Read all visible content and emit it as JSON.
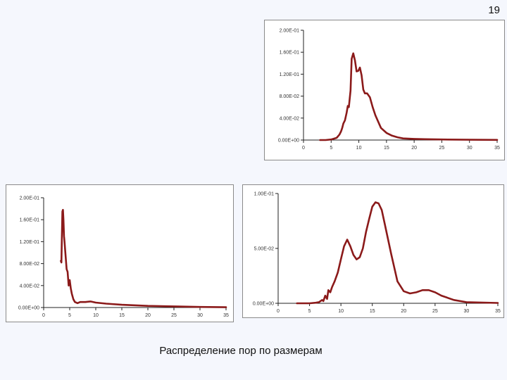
{
  "page_number": "19",
  "caption": "Распределение пор по размерам",
  "colors": {
    "series": "#8b1a1a",
    "axis": "#222222",
    "background": "#f5f7fd",
    "panel": "#ffffff"
  },
  "chart_data": [
    {
      "id": "top",
      "type": "line",
      "title": "",
      "xlabel": "",
      "ylabel": "",
      "xlim": [
        0,
        35
      ],
      "ylim": [
        0,
        0.2
      ],
      "xticks": [
        0,
        5,
        10,
        15,
        20,
        25,
        30,
        35
      ],
      "xtick_labels": [
        "0",
        "5",
        "10",
        "15",
        "20",
        "25",
        "30",
        "35"
      ],
      "yticks": [
        0,
        0.04,
        0.08,
        0.12,
        0.16,
        0.2
      ],
      "ytick_labels": [
        "0.00E+00",
        "4.00E-02",
        "8.00E-02",
        "1.20E-01",
        "1.60E-01",
        "2.00E-01"
      ],
      "grid": false,
      "series": [
        {
          "color": "#8b1a1a",
          "x": [
            3,
            4,
            5,
            6,
            6.5,
            6.8,
            7,
            7.2,
            7.5,
            7.8,
            8,
            8.2,
            8.5,
            8.7,
            9,
            9.3,
            9.6,
            9.9,
            10.2,
            10.5,
            10.8,
            11.1,
            11.5,
            12,
            12.5,
            13,
            14,
            15,
            16,
            17,
            18,
            20,
            22,
            25,
            28,
            30,
            35
          ],
          "y": [
            0,
            0,
            0.001,
            0.004,
            0.01,
            0.016,
            0.022,
            0.03,
            0.036,
            0.05,
            0.062,
            0.06,
            0.09,
            0.148,
            0.158,
            0.145,
            0.125,
            0.126,
            0.132,
            0.118,
            0.092,
            0.085,
            0.085,
            0.078,
            0.06,
            0.045,
            0.022,
            0.013,
            0.008,
            0.005,
            0.003,
            0.002,
            0.0015,
            0.001,
            0.0008,
            0.0005,
            0.0003
          ]
        }
      ]
    },
    {
      "id": "bottom-left",
      "type": "line",
      "title": "",
      "xlabel": "",
      "ylabel": "",
      "xlim": [
        0,
        35
      ],
      "ylim": [
        0,
        0.2
      ],
      "xticks": [
        0,
        5,
        10,
        15,
        20,
        25,
        30,
        35
      ],
      "xtick_labels": [
        "0",
        "5",
        "10",
        "15",
        "20",
        "25",
        "30",
        "35"
      ],
      "yticks": [
        0,
        0.04,
        0.08,
        0.12,
        0.16,
        0.2
      ],
      "ytick_labels": [
        "0.00E+00",
        "4.00E-02",
        "8.00E-02",
        "1.20E-01",
        "1.60E-01",
        "2.00E-01"
      ],
      "grid": false,
      "series": [
        {
          "color": "#8b1a1a",
          "x": [
            3.3,
            3.4,
            3.5,
            3.6,
            3.7,
            3.8,
            3.9,
            4.0,
            4.2,
            4.4,
            4.6,
            4.8,
            5,
            5.2,
            5.4,
            5.7,
            6,
            6.5,
            7,
            8,
            9,
            10,
            12,
            15,
            20,
            25,
            30,
            35
          ],
          "y": [
            0.085,
            0.082,
            0.13,
            0.175,
            0.178,
            0.16,
            0.13,
            0.12,
            0.095,
            0.07,
            0.065,
            0.04,
            0.05,
            0.035,
            0.025,
            0.015,
            0.01,
            0.008,
            0.01,
            0.01,
            0.011,
            0.009,
            0.007,
            0.005,
            0.003,
            0.002,
            0.001,
            0.0005
          ]
        }
      ]
    },
    {
      "id": "bottom-right",
      "type": "line",
      "title": "",
      "xlabel": "",
      "ylabel": "",
      "xlim": [
        0,
        35
      ],
      "ylim": [
        0,
        0.1
      ],
      "xticks": [
        0,
        5,
        10,
        15,
        20,
        25,
        30,
        35
      ],
      "xtick_labels": [
        "0",
        "5",
        "10",
        "15",
        "20",
        "25",
        "30",
        "35"
      ],
      "yticks": [
        0,
        0.05,
        0.1
      ],
      "ytick_labels": [
        "0.00E+00",
        "5.00E-02",
        "1.00E-01"
      ],
      "grid": false,
      "series": [
        {
          "color": "#8b1a1a",
          "x": [
            3,
            5,
            6,
            6.5,
            7,
            7.2,
            7.5,
            7.8,
            8,
            8.3,
            8.6,
            9,
            9.5,
            10,
            10.5,
            11,
            11.5,
            12,
            12.5,
            13,
            13.5,
            14,
            14.5,
            15,
            15.5,
            16,
            16.5,
            17,
            18,
            19,
            20,
            21,
            22,
            23,
            24,
            25,
            26,
            28,
            30,
            35
          ],
          "y": [
            0,
            0,
            0.0005,
            0.001,
            0.003,
            0.002,
            0.007,
            0.004,
            0.012,
            0.01,
            0.015,
            0.02,
            0.028,
            0.04,
            0.052,
            0.058,
            0.052,
            0.044,
            0.04,
            0.042,
            0.05,
            0.065,
            0.077,
            0.088,
            0.092,
            0.091,
            0.085,
            0.072,
            0.045,
            0.02,
            0.011,
            0.009,
            0.01,
            0.012,
            0.012,
            0.01,
            0.007,
            0.003,
            0.001,
            0.0003
          ]
        }
      ]
    }
  ]
}
